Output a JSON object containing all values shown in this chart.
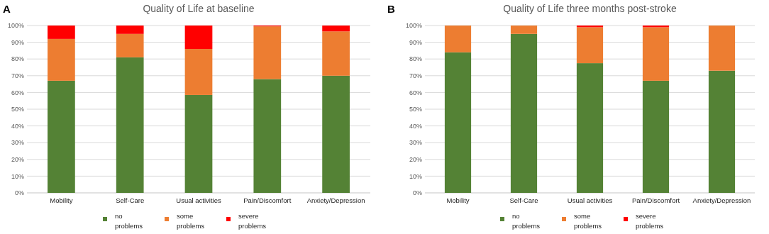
{
  "chart_data": [
    {
      "type": "bar",
      "title": "Quality of Life at baseline",
      "annotations": [
        "A"
      ],
      "categories": [
        "Mobility",
        "Self-Care",
        "Usual activities",
        "Pain/Discomfort",
        "Anxiety/Depression"
      ],
      "stacked": true,
      "legend": "bottom",
      "grid": "y",
      "ylim": [
        0,
        100
      ],
      "yticks": [
        {
          "value": 0,
          "label": "0%"
        },
        {
          "value": 10,
          "label": "10%"
        },
        {
          "value": 20,
          "label": "20%"
        },
        {
          "value": 30,
          "label": "30%"
        },
        {
          "value": 40,
          "label": "40%"
        },
        {
          "value": 50,
          "label": "50%"
        },
        {
          "value": 60,
          "label": "60%"
        },
        {
          "value": 70,
          "label": "70%"
        },
        {
          "value": 80,
          "label": "80%"
        },
        {
          "value": 90,
          "label": "90%"
        },
        {
          "value": 100,
          "label": "100%"
        }
      ],
      "series": [
        {
          "name": "no problems",
          "color": "#548235",
          "values": [
            67,
            81,
            58.5,
            68,
            70
          ]
        },
        {
          "name": "some problems",
          "color": "#ed7d31",
          "values": [
            25,
            14,
            27.5,
            31.5,
            26.5
          ]
        },
        {
          "name": "severe problems",
          "color": "#ff0000",
          "values": [
            8,
            5,
            14,
            0.5,
            3.5
          ]
        }
      ]
    },
    {
      "type": "bar",
      "title": "Quality of Life three months post-stroke",
      "annotations": [
        "B"
      ],
      "categories": [
        "Mobility",
        "Self-Care",
        "Usual activities",
        "Pain/Discomfort",
        "Anxiety/Depression"
      ],
      "stacked": true,
      "legend": "bottom",
      "grid": "y",
      "ylim": [
        0,
        100
      ],
      "yticks": [
        {
          "value": 0,
          "label": "0%"
        },
        {
          "value": 10,
          "label": "10%"
        },
        {
          "value": 20,
          "label": "20%"
        },
        {
          "value": 30,
          "label": "30%"
        },
        {
          "value": 40,
          "label": "40%"
        },
        {
          "value": 50,
          "label": "50%"
        },
        {
          "value": 60,
          "label": "60%"
        },
        {
          "value": 70,
          "label": "70%"
        },
        {
          "value": 80,
          "label": "80%"
        },
        {
          "value": 90,
          "label": "90%"
        },
        {
          "value": 100,
          "label": "100%"
        }
      ],
      "series": [
        {
          "name": "no problems",
          "color": "#548235",
          "values": [
            84,
            95,
            77.5,
            67,
            73
          ]
        },
        {
          "name": "some problems",
          "color": "#ed7d31",
          "values": [
            16,
            5,
            21.5,
            32,
            27
          ]
        },
        {
          "name": "severe problems",
          "color": "#ff0000",
          "values": [
            0,
            0,
            1,
            1,
            0
          ]
        }
      ]
    }
  ]
}
